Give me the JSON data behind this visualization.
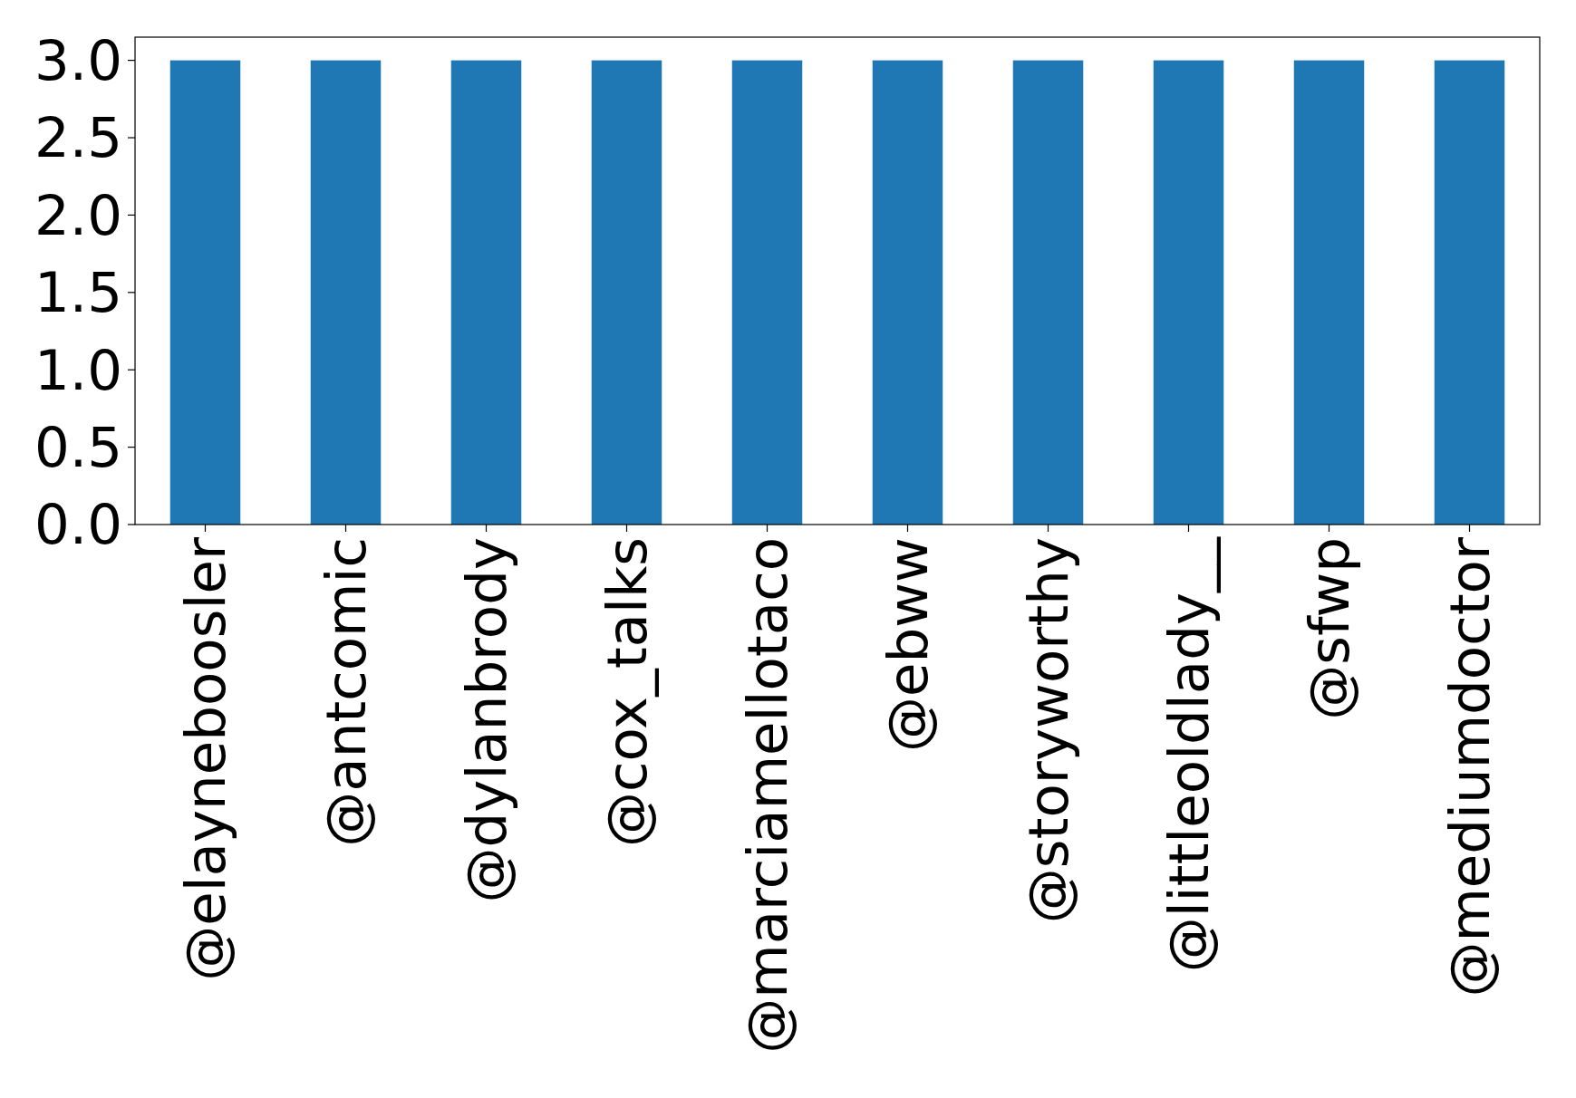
{
  "chart_data": {
    "type": "bar",
    "categories": [
      "@elayneboosler",
      "@antcomic",
      "@dylanbrody",
      "@cox_talks",
      "@marciamellotaco",
      "@ebww",
      "@storyworthy",
      "@littleoldlady__",
      "@sfwp",
      "@mediumdoctor"
    ],
    "values": [
      3,
      3,
      3,
      3,
      3,
      3,
      3,
      3,
      3,
      3
    ],
    "color": "#1f77b4",
    "ylim": [
      0,
      3.15
    ],
    "yticks": [
      {
        "value": 0,
        "label": "0.0"
      },
      0.5,
      {
        "value": 1,
        "label": "1.0"
      },
      1.5,
      {
        "value": 2,
        "label": "2.0"
      },
      2.5,
      {
        "value": 3,
        "label": "3.0"
      }
    ],
    "grid": false
  }
}
